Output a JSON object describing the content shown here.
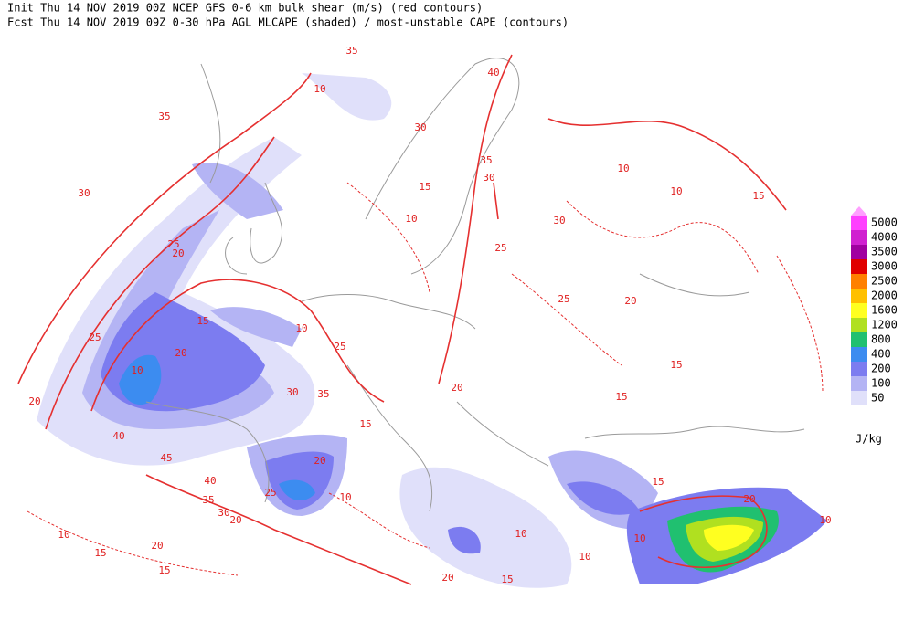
{
  "header": {
    "line1": "Init  Thu 14 NOV 2019 00Z  NCEP GFS 0-6 km bulk shear (m/s) (red contours)",
    "line2": "Fcst Thu 14 NOV 2019 09Z  0-30 hPa AGL MLCAPE (shaded) / most-unstable CAPE (contours)"
  },
  "legend": {
    "unit": "J/kg",
    "levels": [
      {
        "label": "5000",
        "color": "#ff40ff"
      },
      {
        "label": "4000",
        "color": "#d020d0"
      },
      {
        "label": "3500",
        "color": "#a000a0"
      },
      {
        "label": "3000",
        "color": "#e00000"
      },
      {
        "label": "2500",
        "color": "#ff8000"
      },
      {
        "label": "2000",
        "color": "#ffc000"
      },
      {
        "label": "1600",
        "color": "#ffff20"
      },
      {
        "label": "1200",
        "color": "#b0e020"
      },
      {
        "label": "800",
        "color": "#20c070"
      },
      {
        "label": "400",
        "color": "#3c8cf0"
      },
      {
        "label": "200",
        "color": "#7c7cf0"
      },
      {
        "label": "100",
        "color": "#b4b4f4"
      },
      {
        "label": "50",
        "color": "#e0e0fa"
      }
    ],
    "top_color": "#ffa0ff"
  },
  "contour_labels": [
    "35",
    "30",
    "35",
    "25",
    "20",
    "25",
    "20",
    "10",
    "15",
    "10",
    "20",
    "40",
    "45",
    "40",
    "35",
    "30",
    "25",
    "20",
    "10",
    "15",
    "20",
    "15",
    "10",
    "25",
    "30",
    "35",
    "40",
    "30",
    "35",
    "25",
    "30",
    "10",
    "15",
    "25",
    "20",
    "30",
    "10",
    "15",
    "20",
    "15",
    "15",
    "10",
    "15",
    "20",
    "10",
    "20",
    "15",
    "10",
    "10",
    "15",
    "10",
    "20",
    "10"
  ]
}
